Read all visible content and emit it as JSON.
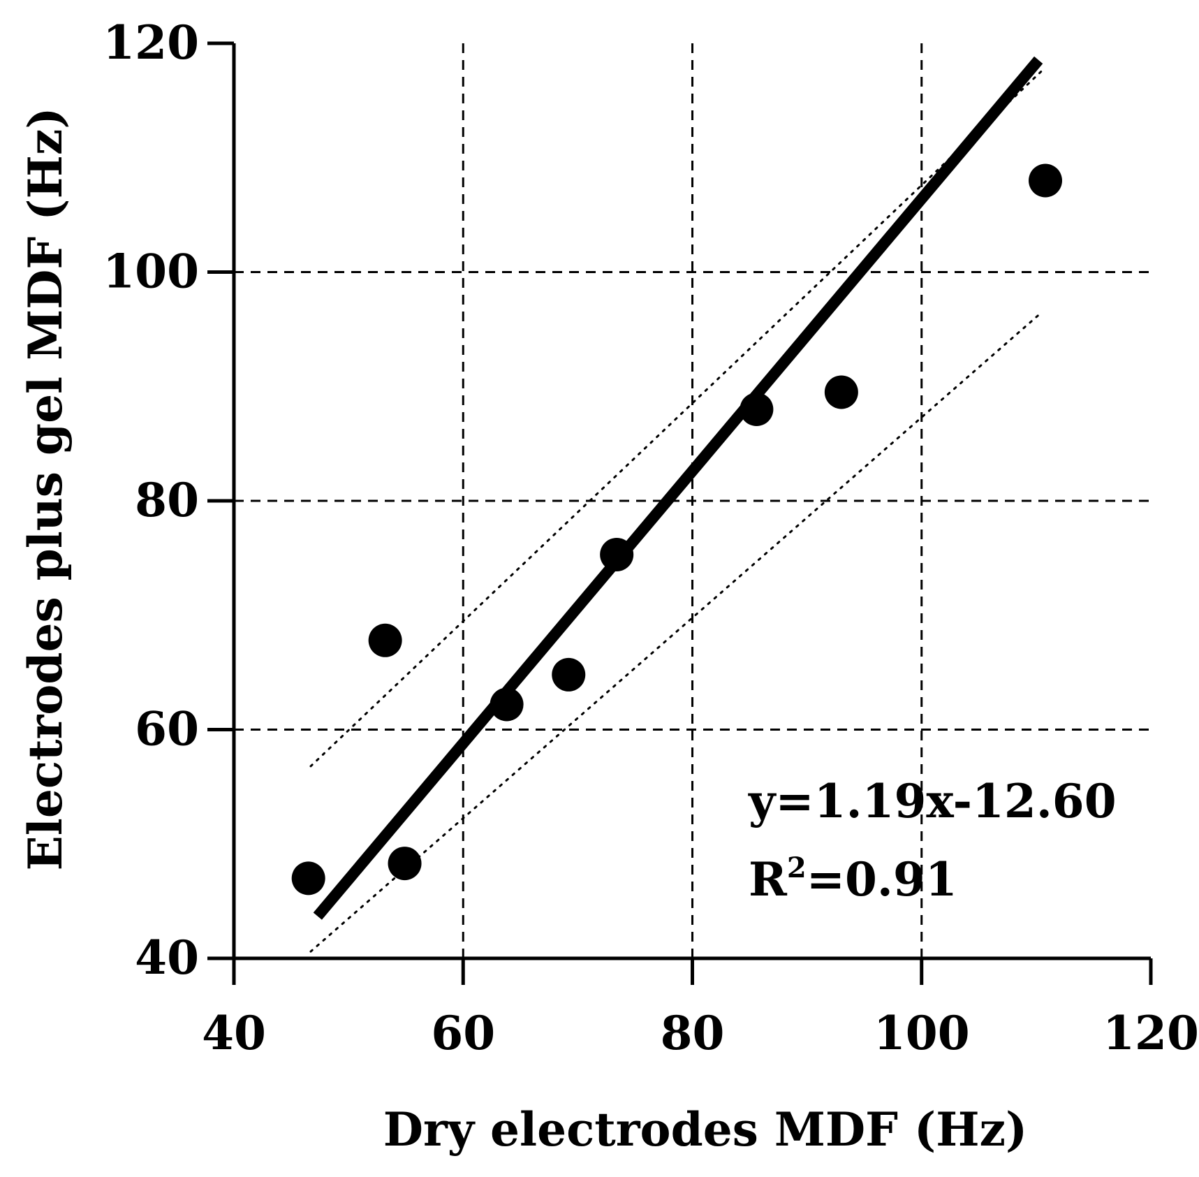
{
  "chart_data": {
    "type": "scatter",
    "title": "",
    "xlabel": "Dry electrodes MDF (Hz)",
    "ylabel": "Electrodes plus gel MDF (Hz)",
    "xlim": [
      40,
      120
    ],
    "ylim": [
      40,
      120
    ],
    "xticks": [
      "40",
      "60",
      "80",
      "100",
      "120"
    ],
    "yticks": [
      "40",
      "60",
      "80",
      "100",
      "120"
    ],
    "grid": true,
    "points": [
      {
        "x": 46.5,
        "y": 47.0
      },
      {
        "x": 53.2,
        "y": 67.8
      },
      {
        "x": 54.9,
        "y": 48.3
      },
      {
        "x": 63.8,
        "y": 62.2
      },
      {
        "x": 69.2,
        "y": 64.8
      },
      {
        "x": 73.4,
        "y": 75.3
      },
      {
        "x": 85.6,
        "y": 88.0
      },
      {
        "x": 93.0,
        "y": 89.5
      },
      {
        "x": 110.8,
        "y": 108.0
      }
    ],
    "fit": {
      "slope": 1.19,
      "intercept": -12.6,
      "x_range": [
        47.3,
        110.2
      ]
    },
    "ci_upper": [
      {
        "x": 46.7,
        "y": 56.8
      },
      {
        "x": 110.5,
        "y": 117.6
      }
    ],
    "ci_lower": [
      {
        "x": 46.7,
        "y": 40.6
      },
      {
        "x": 110.5,
        "y": 96.5
      }
    ],
    "annotation": {
      "equation": "y=1.19x-12.60",
      "r2_prefix": "R",
      "r2_sup": "2",
      "r2_value": "=0.91"
    }
  }
}
